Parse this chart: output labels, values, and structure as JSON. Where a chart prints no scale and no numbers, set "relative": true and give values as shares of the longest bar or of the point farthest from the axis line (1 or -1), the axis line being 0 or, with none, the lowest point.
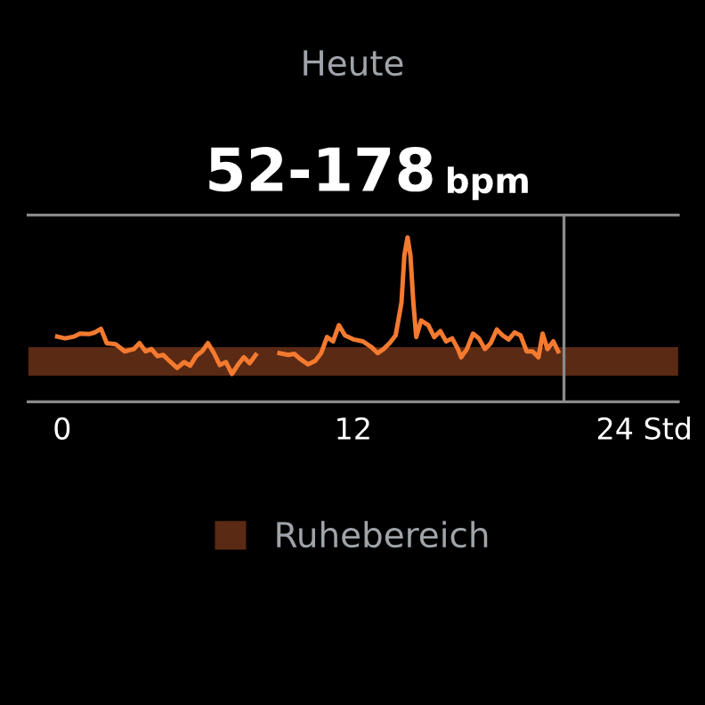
{
  "chart_data": {
    "type": "line",
    "title": "Heute",
    "subtitle": "52-178 bpm",
    "relative": true,
    "x": [
      -0.2,
      0.12,
      0.49,
      0.74,
      1.1,
      1.35,
      1.6,
      1.84,
      2.21,
      2.58,
      2.95,
      3.19,
      3.44,
      3.68,
      3.93,
      4.17,
      4.42,
      4.74,
      5.03,
      5.28,
      5.52,
      5.77,
      6.01,
      6.26,
      6.5,
      6.75,
      7.0,
      7.24,
      7.49,
      7.73,
      7.98,
      8.5,
      8.96,
      9.33,
      9.57,
      9.82,
      10.14,
      10.43,
      10.68,
      10.92,
      11.17,
      11.41,
      11.66,
      12.03,
      12.4,
      12.76,
      13.01,
      13.25,
      13.5,
      13.75,
      13.99,
      14.11,
      14.24,
      14.36,
      14.48,
      14.6,
      14.8,
      15.1,
      15.34,
      15.59,
      15.83,
      16.08,
      16.32,
      16.45,
      16.69,
      16.94,
      17.18,
      17.43,
      17.67,
      17.92,
      18.16,
      18.41,
      18.65,
      18.9,
      19.15,
      19.39,
      19.64,
      19.81,
      20.01,
      20.25,
      20.45
    ],
    "series": [
      {
        "color": "#f47a30",
        "values": [
          0.397,
          0.386,
          0.397,
          0.415,
          0.412,
          0.422,
          0.444,
          0.357,
          0.35,
          0.307,
          0.321,
          0.357,
          0.307,
          0.321,
          0.278,
          0.285,
          0.249,
          0.206,
          0.242,
          0.22,
          0.278,
          0.307,
          0.357,
          0.296,
          0.224,
          0.242,
          0.17,
          0.224,
          0.271,
          0.235,
          0.285,
          null,
          0.296,
          0.285,
          0.292,
          0.26,
          0.228,
          0.249,
          0.296,
          0.394,
          0.368,
          0.466,
          0.404,
          0.379,
          0.368,
          0.332,
          0.296,
          0.321,
          0.357,
          0.404,
          0.603,
          0.891,
          1.0,
          0.891,
          0.603,
          0.394,
          0.495,
          0.466,
          0.394,
          0.43,
          0.368,
          0.386,
          0.321,
          0.271,
          0.321,
          0.415,
          0.386,
          0.321,
          0.357,
          0.44,
          0.404,
          0.379,
          0.422,
          0.404,
          0.307,
          0.307,
          0.271,
          0.415,
          0.321,
          0.368,
          0.307
        ]
      }
    ],
    "xlim": [
      -1.4,
      25.4
    ],
    "xticks": [
      0,
      12,
      {
        "value": 24,
        "label": "24 Std"
      }
    ],
    "tick_labels": "x",
    "bands": [
      {
        "axis": "y",
        "from": 0.159,
        "to": 0.332,
        "label": "Ruhebereich",
        "color": "#5a2a14"
      }
    ],
    "ref_lines": [
      {
        "axis": "x",
        "value": 20.69,
        "label": null,
        "color": "#8a8a8a"
      }
    ],
    "grid": false,
    "legend": "bottom",
    "marker": "none",
    "line_style": "solid"
  }
}
